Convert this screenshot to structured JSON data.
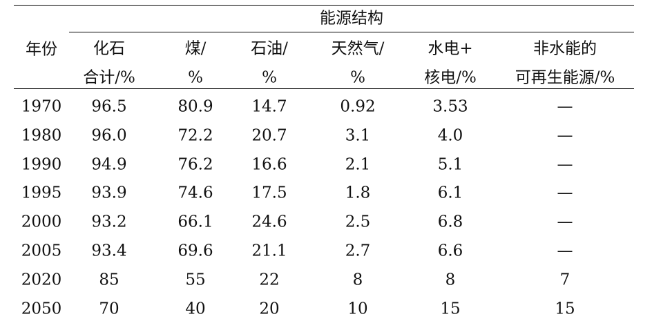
{
  "table": {
    "group_header": "能源结构",
    "year_header": "年份",
    "columns": [
      [
        "化石",
        "合计/%"
      ],
      [
        "煤/",
        "%"
      ],
      [
        "石油/",
        "%"
      ],
      [
        "天然气/",
        "%"
      ],
      [
        "水电+",
        "核电/%"
      ],
      [
        "非水能的",
        "可再生能源/%"
      ]
    ],
    "rows": [
      [
        "1970",
        "96.5",
        "80.9",
        "14.7",
        "0.92",
        "3.53",
        "—"
      ],
      [
        "1980",
        "96.0",
        "72.2",
        "20.7",
        "3.1",
        "4.0",
        "—"
      ],
      [
        "1990",
        "94.9",
        "76.2",
        "16.6",
        "2.1",
        "5.1",
        "—"
      ],
      [
        "1995",
        "93.9",
        "74.6",
        "17.5",
        "1.8",
        "6.1",
        "—"
      ],
      [
        "2000",
        "93.2",
        "66.1",
        "24.6",
        "2.5",
        "6.8",
        "—"
      ],
      [
        "2005",
        "93.4",
        "69.6",
        "21.1",
        "2.7",
        "6.6",
        "—"
      ],
      [
        "2020",
        "85",
        "55",
        "22",
        "8",
        "8",
        "7"
      ],
      [
        "2050",
        "70",
        "40",
        "20",
        "10",
        "15",
        "15"
      ]
    ]
  }
}
